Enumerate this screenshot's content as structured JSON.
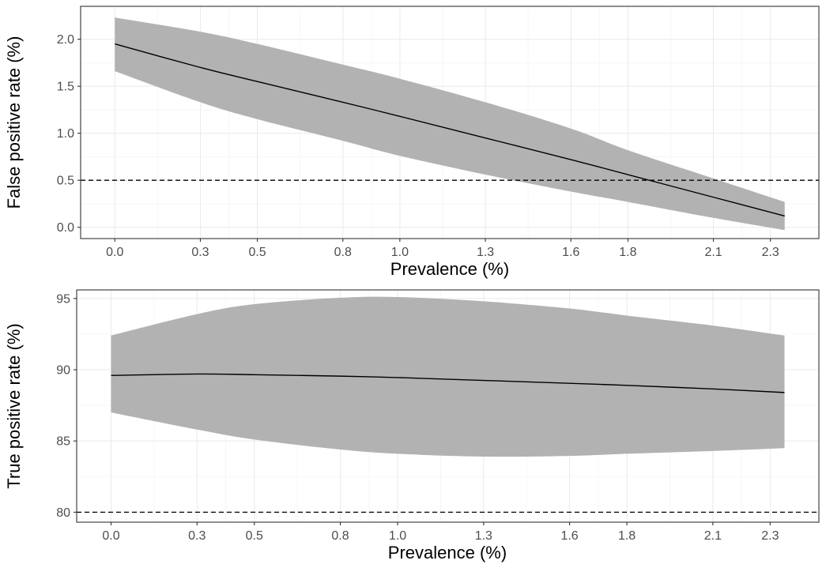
{
  "colors": {
    "ribbon": "#b2b2b2",
    "line": "#000000",
    "grid_major": "#ebebeb",
    "grid_minor": "#f5f5f5",
    "panel_border": "#333333",
    "tick_text": "#4d4d4d"
  },
  "chart_data": [
    {
      "type": "line",
      "title": "",
      "xlabel": "Prevalence (%)",
      "ylabel": "False positive rate (%)",
      "xlim": [
        -0.12,
        2.47
      ],
      "ylim": [
        -0.12,
        2.35
      ],
      "x_ticks": [
        0.0,
        0.3,
        0.5,
        0.8,
        1.0,
        1.3,
        1.6,
        1.8,
        2.1,
        2.3
      ],
      "x_tick_labels": [
        "0.0",
        "0.3",
        "0.5",
        "0.8",
        "1.0",
        "1.3",
        "1.6",
        "1.8",
        "2.1",
        "2.3"
      ],
      "y_ticks": [
        0.0,
        0.5,
        1.0,
        1.5,
        2.0
      ],
      "y_tick_labels": [
        "0.0",
        "0.5",
        "1.0",
        "1.5",
        "2.0"
      ],
      "reference_line": {
        "y": 0.5,
        "style": "dashed"
      },
      "series": [
        {
          "name": "estimate",
          "x": [
            0.0,
            0.3,
            0.5,
            0.8,
            1.0,
            1.3,
            1.6,
            1.8,
            2.1,
            2.35
          ],
          "y": [
            1.95,
            1.7,
            1.55,
            1.33,
            1.18,
            0.95,
            0.72,
            0.56,
            0.32,
            0.12
          ],
          "lower": [
            1.66,
            1.33,
            1.15,
            0.92,
            0.76,
            0.56,
            0.38,
            0.27,
            0.1,
            -0.03
          ],
          "upper": [
            2.23,
            2.08,
            1.95,
            1.73,
            1.58,
            1.33,
            1.05,
            0.82,
            0.52,
            0.27
          ]
        }
      ]
    },
    {
      "type": "line",
      "title": "",
      "xlabel": "Prevalence (%)",
      "ylabel": "True positive rate (%)",
      "xlim": [
        -0.12,
        2.47
      ],
      "ylim": [
        79.3,
        95.6
      ],
      "x_ticks": [
        0.0,
        0.3,
        0.5,
        0.8,
        1.0,
        1.3,
        1.6,
        1.8,
        2.1,
        2.3
      ],
      "x_tick_labels": [
        "0.0",
        "0.3",
        "0.5",
        "0.8",
        "1.0",
        "1.3",
        "1.6",
        "1.8",
        "2.1",
        "2.3"
      ],
      "y_ticks": [
        80,
        85,
        90,
        95
      ],
      "y_tick_labels": [
        "80",
        "85",
        "90",
        "95"
      ],
      "reference_line": {
        "y": 80,
        "style": "dashed"
      },
      "series": [
        {
          "name": "estimate",
          "x": [
            0.0,
            0.3,
            0.5,
            0.8,
            1.0,
            1.3,
            1.6,
            1.8,
            2.1,
            2.35
          ],
          "y": [
            89.6,
            89.7,
            89.65,
            89.55,
            89.45,
            89.25,
            89.05,
            88.9,
            88.65,
            88.4
          ],
          "lower": [
            87.0,
            85.8,
            85.1,
            84.4,
            84.1,
            83.9,
            83.95,
            84.1,
            84.3,
            84.5
          ],
          "upper": [
            92.4,
            93.9,
            94.6,
            95.05,
            95.1,
            94.8,
            94.3,
            93.8,
            93.1,
            92.4
          ]
        }
      ]
    }
  ]
}
